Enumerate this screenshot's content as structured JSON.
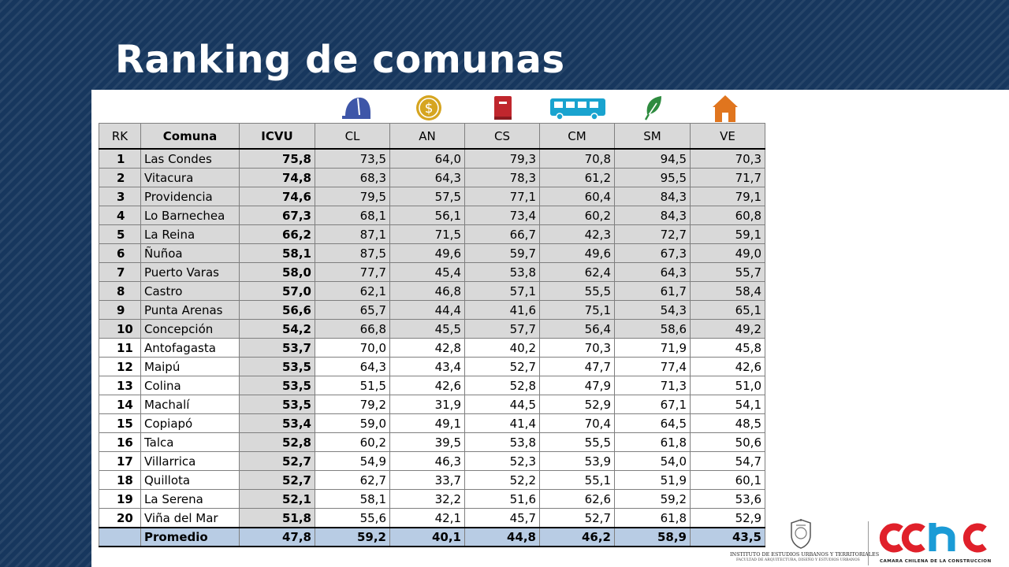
{
  "title": "Ranking de comunas",
  "icons": [
    "helmet-icon",
    "dollar-coin-icon",
    "book-icon",
    "bus-icon",
    "leaf-icon",
    "house-icon"
  ],
  "colors": {
    "background": "#17375e",
    "icon_blue": "#3e56a8",
    "icon_gold": "#d6a520",
    "icon_red": "#c0262d",
    "icon_cyan": "#19a3cf",
    "icon_green": "#2e8b3f",
    "icon_orange": "#e0751e",
    "highlight_grey": "#d9d9d9",
    "footer_blue": "#b8cce4",
    "cchc_red": "#e0202a",
    "cchc_blue": "#1b9bd6"
  },
  "table": {
    "headers": [
      "RK",
      "Comuna",
      "ICVU",
      "CL",
      "AN",
      "CS",
      "CM",
      "SM",
      "VE"
    ],
    "rows": [
      {
        "rk": "1",
        "comuna": "Las Condes",
        "icvu": "75,8",
        "cl": "73,5",
        "an": "64,0",
        "cs": "79,3",
        "cm": "70,8",
        "sm": "94,5",
        "ve": "70,3"
      },
      {
        "rk": "2",
        "comuna": "Vitacura",
        "icvu": "74,8",
        "cl": "68,3",
        "an": "64,3",
        "cs": "78,3",
        "cm": "61,2",
        "sm": "95,5",
        "ve": "71,7"
      },
      {
        "rk": "3",
        "comuna": "Providencia",
        "icvu": "74,6",
        "cl": "79,5",
        "an": "57,5",
        "cs": "77,1",
        "cm": "60,4",
        "sm": "84,3",
        "ve": "79,1"
      },
      {
        "rk": "4",
        "comuna": "Lo Barnechea",
        "icvu": "67,3",
        "cl": "68,1",
        "an": "56,1",
        "cs": "73,4",
        "cm": "60,2",
        "sm": "84,3",
        "ve": "60,8"
      },
      {
        "rk": "5",
        "comuna": "La Reina",
        "icvu": "66,2",
        "cl": "87,1",
        "an": "71,5",
        "cs": "66,7",
        "cm": "42,3",
        "sm": "72,7",
        "ve": "59,1"
      },
      {
        "rk": "6",
        "comuna": "Ñuñoa",
        "icvu": "58,1",
        "cl": "87,5",
        "an": "49,6",
        "cs": "59,7",
        "cm": "49,6",
        "sm": "67,3",
        "ve": "49,0"
      },
      {
        "rk": "7",
        "comuna": "Puerto Varas",
        "icvu": "58,0",
        "cl": "77,7",
        "an": "45,4",
        "cs": "53,8",
        "cm": "62,4",
        "sm": "64,3",
        "ve": "55,7"
      },
      {
        "rk": "8",
        "comuna": "Castro",
        "icvu": "57,0",
        "cl": "62,1",
        "an": "46,8",
        "cs": "57,1",
        "cm": "55,5",
        "sm": "61,7",
        "ve": "58,4"
      },
      {
        "rk": "9",
        "comuna": "Punta Arenas",
        "icvu": "56,6",
        "cl": "65,7",
        "an": "44,4",
        "cs": "41,6",
        "cm": "75,1",
        "sm": "54,3",
        "ve": "65,1"
      },
      {
        "rk": "10",
        "comuna": "Concepción",
        "icvu": "54,2",
        "cl": "66,8",
        "an": "45,5",
        "cs": "57,7",
        "cm": "56,4",
        "sm": "58,6",
        "ve": "49,2"
      },
      {
        "rk": "11",
        "comuna": "Antofagasta",
        "icvu": "53,7",
        "cl": "70,0",
        "an": "42,8",
        "cs": "40,2",
        "cm": "70,3",
        "sm": "71,9",
        "ve": "45,8"
      },
      {
        "rk": "12",
        "comuna": "Maipú",
        "icvu": "53,5",
        "cl": "64,3",
        "an": "43,4",
        "cs": "52,7",
        "cm": "47,7",
        "sm": "77,4",
        "ve": "42,6"
      },
      {
        "rk": "13",
        "comuna": "Colina",
        "icvu": "53,5",
        "cl": "51,5",
        "an": "42,6",
        "cs": "52,8",
        "cm": "47,9",
        "sm": "71,3",
        "ve": "51,0"
      },
      {
        "rk": "14",
        "comuna": "Machalí",
        "icvu": "53,5",
        "cl": "79,2",
        "an": "31,9",
        "cs": "44,5",
        "cm": "52,9",
        "sm": "67,1",
        "ve": "54,1"
      },
      {
        "rk": "15",
        "comuna": "Copiapó",
        "icvu": "53,4",
        "cl": "59,0",
        "an": "49,1",
        "cs": "41,4",
        "cm": "70,4",
        "sm": "64,5",
        "ve": "48,5"
      },
      {
        "rk": "16",
        "comuna": "Talca",
        "icvu": "52,8",
        "cl": "60,2",
        "an": "39,5",
        "cs": "53,8",
        "cm": "55,5",
        "sm": "61,8",
        "ve": "50,6"
      },
      {
        "rk": "17",
        "comuna": "Villarrica",
        "icvu": "52,7",
        "cl": "54,9",
        "an": "46,3",
        "cs": "52,3",
        "cm": "53,9",
        "sm": "54,0",
        "ve": "54,7"
      },
      {
        "rk": "18",
        "comuna": "Quillota",
        "icvu": "52,7",
        "cl": "62,7",
        "an": "33,7",
        "cs": "52,2",
        "cm": "55,1",
        "sm": "51,9",
        "ve": "60,1"
      },
      {
        "rk": "19",
        "comuna": "La Serena",
        "icvu": "52,1",
        "cl": "58,1",
        "an": "32,2",
        "cs": "51,6",
        "cm": "62,6",
        "sm": "59,2",
        "ve": "53,6"
      },
      {
        "rk": "20",
        "comuna": "Viña del Mar",
        "icvu": "51,8",
        "cl": "55,6",
        "an": "42,1",
        "cs": "45,7",
        "cm": "52,7",
        "sm": "61,8",
        "ve": "52,9"
      }
    ],
    "footer": {
      "rk": "",
      "comuna": "Promedio",
      "icvu": "47,8",
      "cl": "59,2",
      "an": "40,1",
      "cs": "44,8",
      "cm": "46,2",
      "sm": "58,9",
      "ve": "43,5"
    }
  },
  "logos": {
    "ieut_line1": "INSTITUTO DE ESTUDIOS URBANOS Y TERRITORIALES",
    "ieut_line2": "FACULTAD DE ARQUITECTURA, DISEÑO Y ESTUDIOS URBANOS",
    "cchc_name": "CAMARA CHILENA DE LA CONSTRUCCION"
  }
}
